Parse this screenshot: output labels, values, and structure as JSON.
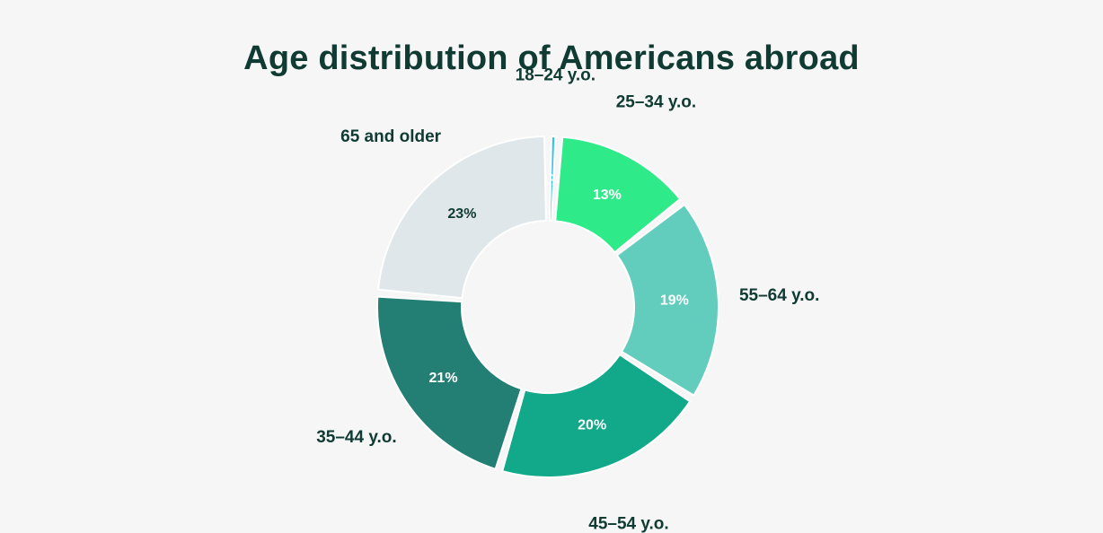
{
  "title": "Age distribution of Americans abroad",
  "chart_data": {
    "type": "pie",
    "title": "Age distribution of Americans abroad",
    "donut": true,
    "categories": [
      "18–24 y.o.",
      "25–34 y.o.",
      "55–64 y.o.",
      "45–54 y.o.",
      "35–44 y.o.",
      "65 and older"
    ],
    "values": [
      1,
      13,
      19,
      20,
      21,
      23
    ],
    "value_labels": [
      "1%",
      "13%",
      "19%",
      "20%",
      "21%",
      "23%"
    ],
    "colors": [
      "#2ec5ea",
      "#2eea88",
      "#62cdbc",
      "#11a98a",
      "#237e73",
      "#dfe7ea"
    ],
    "value_label_colors": [
      "#ffffff",
      "#ffffff",
      "#ffffff",
      "#ffffff",
      "#ffffff",
      "#0f3b32"
    ],
    "category_label_color": "#0f3b32",
    "legend": "none"
  }
}
